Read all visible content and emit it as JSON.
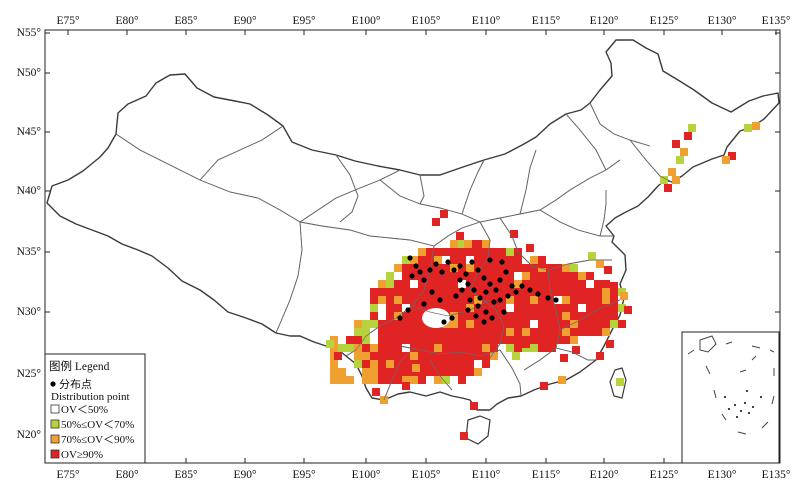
{
  "map": {
    "lon_ticks": [
      "E75°",
      "E80°",
      "E85°",
      "E90°",
      "E95°",
      "E100°",
      "E105°",
      "E110°",
      "E115°",
      "E120°",
      "E125°",
      "E130°",
      "E135°"
    ],
    "lat_ticks": [
      "N55°",
      "N50°",
      "N45°",
      "N40°",
      "N35°",
      "N30°",
      "N25°",
      "N20°"
    ],
    "lon_range": [
      73,
      135
    ],
    "lat_range": [
      17,
      55
    ]
  },
  "legend": {
    "title": "图例 Legend",
    "point_label_cn": "分布点",
    "point_label_en": "Distribution point",
    "classes": [
      {
        "label": "OV＜50%",
        "color": "#ffffff"
      },
      {
        "label": "50%≤OV＜70%",
        "color": "#b6d23c"
      },
      {
        "label": "70%≤OV＜90%",
        "color": "#f0a030"
      },
      {
        "label": "OV≥90%",
        "color": "#e02424"
      }
    ]
  },
  "colors": {
    "high": "#e02424",
    "mid": "#f0a030",
    "low": "#b6d23c",
    "point": "#000000",
    "border": "#555555",
    "frame": "#222222"
  }
}
